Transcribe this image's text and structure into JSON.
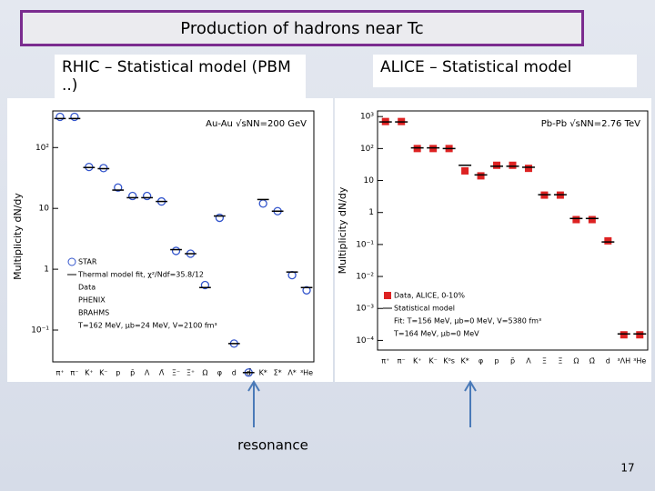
{
  "slide": {
    "title": "Production of hadrons  near Tc",
    "left_label": "RHIC – Statistical model (PBM ..)",
    "right_label": "ALICE – Statistical model",
    "arrow_label": "resonance",
    "page_number": "17"
  },
  "chart_data": [
    {
      "type": "dot",
      "log_y": true,
      "ylabel": "Multiplicity dN/dy",
      "annotations": [
        "Au-Au √sNN=200 GeV",
        "Data",
        "PHENIX",
        "BRAHMS",
        "T=162 MeV, μb=24 MeV, V=2100 fm³"
      ],
      "categories": [
        "π⁺",
        "π⁻",
        "K⁺",
        "K⁻",
        "p",
        "p̄",
        "Λ",
        "Λ̄",
        "Ξ⁻",
        "Ξ̄⁺",
        "Ω",
        "φ",
        "d",
        "d̄",
        "K*",
        "Σ*",
        "Λ*",
        "³He"
      ],
      "ylim": [
        0.03,
        400
      ],
      "yticks": [
        {
          "value": 0.1,
          "label": "10⁻¹"
        },
        1,
        10,
        {
          "value": 100,
          "label": "10²"
        }
      ],
      "series": [
        {
          "name": "STAR",
          "color": "#3355cc",
          "marker": "circle",
          "values": [
            320,
            320,
            48,
            46,
            22,
            16,
            16,
            13,
            2,
            1.8,
            0.55,
            7,
            0.06,
            0.02,
            12,
            9,
            0.8,
            0.45
          ]
        },
        {
          "name": "Thermal model fit, χ²/Ndf=35.8/12",
          "color": "#000000",
          "marker": "line",
          "values": [
            300,
            300,
            47,
            45,
            20,
            15,
            15,
            13,
            2.1,
            1.8,
            0.5,
            7.5,
            0.06,
            0.02,
            14,
            9,
            0.9,
            0.5
          ]
        }
      ]
    },
    {
      "type": "dot",
      "log_y": true,
      "ylabel": "Multiplicity dN/dy",
      "annotations": [
        "Pb-Pb √sNN=2.76 TeV",
        "Fit: T=156 MeV, μb=0 MeV, V=5380 fm³",
        "T=164 MeV, μb=0 MeV"
      ],
      "categories": [
        "π⁺",
        "π⁻",
        "K⁺",
        "K⁻",
        "K⁰s",
        "K*",
        "φ",
        "p",
        "p̄",
        "Λ",
        "Ξ",
        "Ξ̄",
        "Ω",
        "Ω̄",
        "d",
        "³ΛH",
        "³He"
      ],
      "ylim": [
        5e-05,
        1500
      ],
      "yticks": [
        {
          "value": 0.0001,
          "label": "10⁻⁴"
        },
        {
          "value": 0.001,
          "label": "10⁻³"
        },
        {
          "value": 0.01,
          "label": "10⁻²"
        },
        {
          "value": 0.1,
          "label": "10⁻¹"
        },
        1,
        10,
        {
          "value": 100,
          "label": "10²"
        },
        {
          "value": 1000,
          "label": "10³"
        }
      ],
      "series": [
        {
          "name": "Data, ALICE, 0-10%",
          "color": "#dd2222",
          "marker": "square",
          "values": [
            700,
            700,
            100,
            100,
            100,
            20,
            14,
            30,
            30,
            24,
            3.5,
            3.5,
            0.6,
            0.6,
            0.13,
            0.00015,
            0.00015
          ]
        },
        {
          "name": "Statistical model",
          "color": "#000000",
          "marker": "line",
          "values": [
            680,
            680,
            105,
            105,
            100,
            30,
            15,
            28,
            28,
            26,
            3.6,
            3.6,
            0.65,
            0.65,
            0.12,
            0.00016,
            0.00016
          ]
        }
      ]
    }
  ]
}
